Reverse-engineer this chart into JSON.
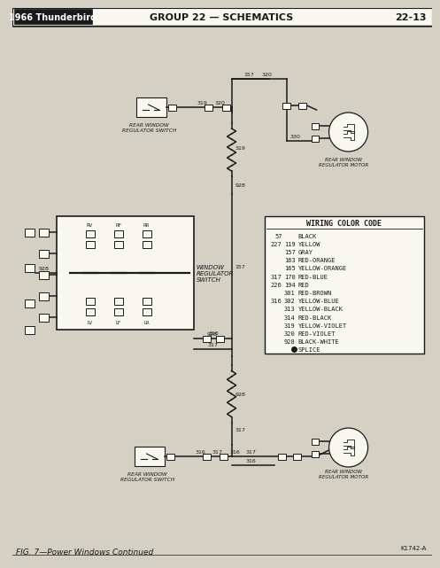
{
  "title_left": "1966 Thunderbird",
  "title_center": "GROUP 22 — SCHEMATICS",
  "title_right": "22-13",
  "fig_label": "FIG. 7—Power Windows Continued",
  "fig_id": "K1742-A",
  "bg_color": "#ccc9bc",
  "page_bg": "#d4d0c4",
  "header_bg": "#ffffff",
  "wiring_color_code_title": "WIRING COLOR CODE",
  "wiring_colors": [
    [
      "57",
      "",
      "BLACK"
    ],
    [
      "227",
      "119",
      "YELLOW"
    ],
    [
      "",
      "157",
      "GRAY"
    ],
    [
      "",
      "163",
      "RED-ORANGE"
    ],
    [
      "",
      "165",
      "YELLOW-ORANGE"
    ],
    [
      "317",
      "170",
      "RED-BLUE"
    ],
    [
      "226",
      "194",
      "RED"
    ],
    [
      "",
      "301",
      "RED-BROWN"
    ],
    [
      "316",
      "302",
      "YELLOW-BLUE"
    ],
    [
      "",
      "313",
      "YELLOW-BLACK"
    ],
    [
      "",
      "314",
      "RED-BLACK"
    ],
    [
      "",
      "319",
      "YELLOW-VIOLET"
    ],
    [
      "",
      "320",
      "RED-VIOLET"
    ],
    [
      "",
      "928",
      "BLACK-WHITE"
    ],
    [
      "",
      "●",
      "SPLICE"
    ]
  ]
}
